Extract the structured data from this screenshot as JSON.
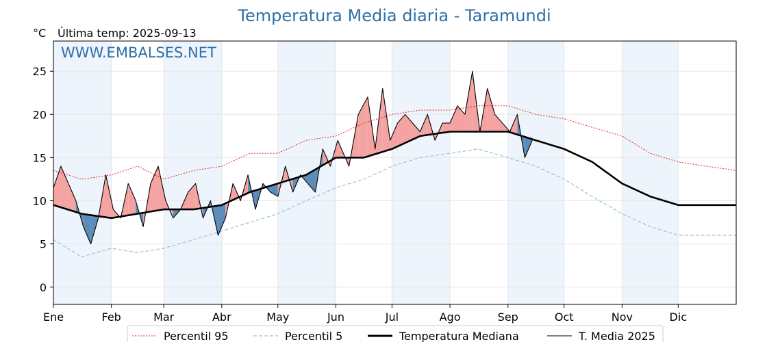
{
  "chart_data": {
    "type": "line",
    "title": "Temperatura Media diaria - Taramundi",
    "unit_label": "°C",
    "last_temp": "Última temp: 2025-09-13",
    "watermark": "WWW.EMBALSES.NET",
    "ylim": [
      -2,
      28.5
    ],
    "yticks": [
      0,
      5,
      10,
      15,
      20,
      25
    ],
    "x_range_days": [
      0,
      365
    ],
    "months": [
      {
        "label": "Ene",
        "day": 0
      },
      {
        "label": "Feb",
        "day": 31
      },
      {
        "label": "Mar",
        "day": 59
      },
      {
        "label": "Abr",
        "day": 90
      },
      {
        "label": "May",
        "day": 120
      },
      {
        "label": "Jun",
        "day": 151
      },
      {
        "label": "Jul",
        "day": 181
      },
      {
        "label": "Ago",
        "day": 212
      },
      {
        "label": "Sep",
        "day": 243
      },
      {
        "label": "Oct",
        "day": 273
      },
      {
        "label": "Nov",
        "day": 304
      },
      {
        "label": "Dic",
        "day": 334
      }
    ],
    "shaded_months": [
      0,
      2,
      4,
      6,
      8,
      10
    ],
    "grid": true,
    "legend_position": "bottom-center",
    "colors": {
      "p95": "#e8231e",
      "p5": "#8ec5d6",
      "median": "#000000",
      "current": "#000000",
      "above_fill": "#f4a3a3",
      "below_fill": "#5b8db8",
      "shade": "#eef4fb",
      "title": "#2f6fa6"
    },
    "series": [
      {
        "name": "Percentil 95",
        "style": "dotted-red",
        "x": [
          0,
          15,
          31,
          45,
          59,
          75,
          90,
          105,
          120,
          135,
          151,
          166,
          181,
          196,
          212,
          227,
          243,
          258,
          273,
          288,
          304,
          319,
          334,
          349,
          365
        ],
        "values": [
          13.5,
          12.5,
          13,
          14,
          12.5,
          13.5,
          14,
          15.5,
          15.5,
          17,
          17.5,
          19,
          20,
          20.5,
          20.5,
          21,
          21,
          20,
          19.5,
          18.5,
          17.5,
          15.5,
          14.5,
          14,
          13.5
        ]
      },
      {
        "name": "Percentil 5",
        "style": "dashed-lightblue",
        "x": [
          0,
          15,
          31,
          45,
          59,
          75,
          90,
          105,
          120,
          135,
          151,
          166,
          181,
          196,
          212,
          227,
          243,
          258,
          273,
          288,
          304,
          319,
          334,
          349,
          365
        ],
        "values": [
          5.5,
          3.5,
          4.5,
          4,
          4.5,
          5.5,
          6.5,
          7.5,
          8.5,
          10,
          11.5,
          12.5,
          14,
          15,
          15.5,
          16,
          15,
          14,
          12.5,
          10.5,
          8.5,
          7,
          6,
          6,
          6
        ]
      },
      {
        "name": "Temperatura Mediana",
        "style": "thick-black",
        "x": [
          0,
          15,
          31,
          45,
          59,
          75,
          90,
          105,
          120,
          135,
          151,
          166,
          181,
          196,
          212,
          227,
          243,
          258,
          273,
          288,
          304,
          319,
          334,
          349,
          365
        ],
        "values": [
          9.5,
          8.5,
          8,
          8.5,
          9,
          9,
          9.5,
          11,
          12,
          13,
          15,
          15,
          16,
          17.5,
          18,
          18,
          18,
          17,
          16,
          14.5,
          12,
          10.5,
          9.5,
          9.5,
          9.5
        ]
      },
      {
        "name": "T. Media 2025",
        "style": "thin-black",
        "x": [
          0,
          4,
          8,
          12,
          16,
          20,
          24,
          28,
          32,
          36,
          40,
          44,
          48,
          52,
          56,
          60,
          64,
          68,
          72,
          76,
          80,
          84,
          88,
          92,
          96,
          100,
          104,
          108,
          112,
          116,
          120,
          124,
          128,
          132,
          136,
          140,
          144,
          148,
          152,
          158,
          163,
          168,
          172,
          176,
          180,
          184,
          188,
          192,
          196,
          200,
          204,
          208,
          212,
          216,
          220,
          224,
          228,
          232,
          236,
          240,
          244,
          248,
          252,
          256
        ],
        "values": [
          11.5,
          14,
          12,
          10,
          7,
          5,
          8,
          13,
          9,
          8,
          12,
          10,
          7,
          12,
          14,
          10,
          8,
          9,
          11,
          12,
          8,
          10,
          6,
          8,
          12,
          10,
          13,
          9,
          12,
          11,
          10.5,
          14,
          11,
          13,
          12,
          11,
          16,
          14,
          17,
          14,
          20,
          22,
          16,
          23,
          17,
          19,
          20,
          19,
          18,
          20,
          17,
          19,
          19,
          21,
          20,
          25,
          18,
          23,
          20,
          19,
          18,
          20,
          15,
          17
        ]
      }
    ]
  },
  "legend": {
    "items": [
      {
        "label": "Percentil 95"
      },
      {
        "label": "Percentil 5"
      },
      {
        "label": "Temperatura Mediana"
      },
      {
        "label": "T. Media 2025"
      }
    ]
  }
}
